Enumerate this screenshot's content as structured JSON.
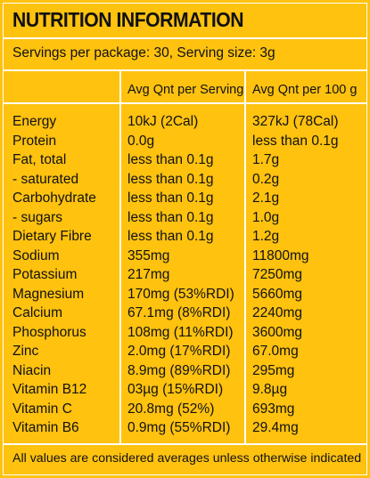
{
  "title": "NUTRITION INFORMATION",
  "servings": "Servings per package: 30, Serving size: 3g",
  "headers": [
    "",
    "Avg Qnt per Serving",
    "Avg Qnt per 100 g"
  ],
  "rows": [
    {
      "name": "Energy",
      "serving": "10kJ (2Cal)",
      "per100": "327kJ (78Cal)"
    },
    {
      "name": "Protein",
      "serving": "0.0g",
      "per100": "less than 0.1g"
    },
    {
      "name": "Fat, total",
      "serving": "less than 0.1g",
      "per100": "1.7g"
    },
    {
      "name": "- saturated",
      "serving": "less than 0.1g",
      "per100": "0.2g"
    },
    {
      "name": "Carbohydrate",
      "serving": "less than 0.1g",
      "per100": "2.1g"
    },
    {
      "name": "- sugars",
      "serving": "less than 0.1g",
      "per100": "1.0g"
    },
    {
      "name": "Dietary Fibre",
      "serving": "less than 0.1g",
      "per100": "1.2g"
    },
    {
      "name": "Sodium",
      "serving": "355mg",
      "per100": "11800mg"
    },
    {
      "name": "Potassium",
      "serving": "217mg",
      "per100": "7250mg"
    },
    {
      "name": "Magnesium",
      "serving": "170mg (53%RDI)",
      "per100": "5660mg"
    },
    {
      "name": "Calcium",
      "serving": "67.1mg (8%RDI)",
      "per100": "2240mg"
    },
    {
      "name": "Phosphorus",
      "serving": "108mg (11%RDI)",
      "per100": "3600mg"
    },
    {
      "name": "Zinc",
      "serving": "2.0mg (17%RDI)",
      "per100": "67.0mg"
    },
    {
      "name": "Niacin",
      "serving": "8.9mg (89%RDI)",
      "per100": "295mg"
    },
    {
      "name": "Vitamin B12",
      "serving": "03µg (15%RDI)",
      "per100": "9.8µg"
    },
    {
      "name": "Vitamin C",
      "serving": "20.8mg (52%)",
      "per100": "693mg"
    },
    {
      "name": "Vitamin B6",
      "serving": "0.9mg (55%RDI)",
      "per100": "29.4mg"
    }
  ],
  "footer": "All values are considered averages unless otherwise indicated",
  "colors": {
    "background": "#fec20f",
    "lines": "#ffffff",
    "text": "#111111"
  }
}
